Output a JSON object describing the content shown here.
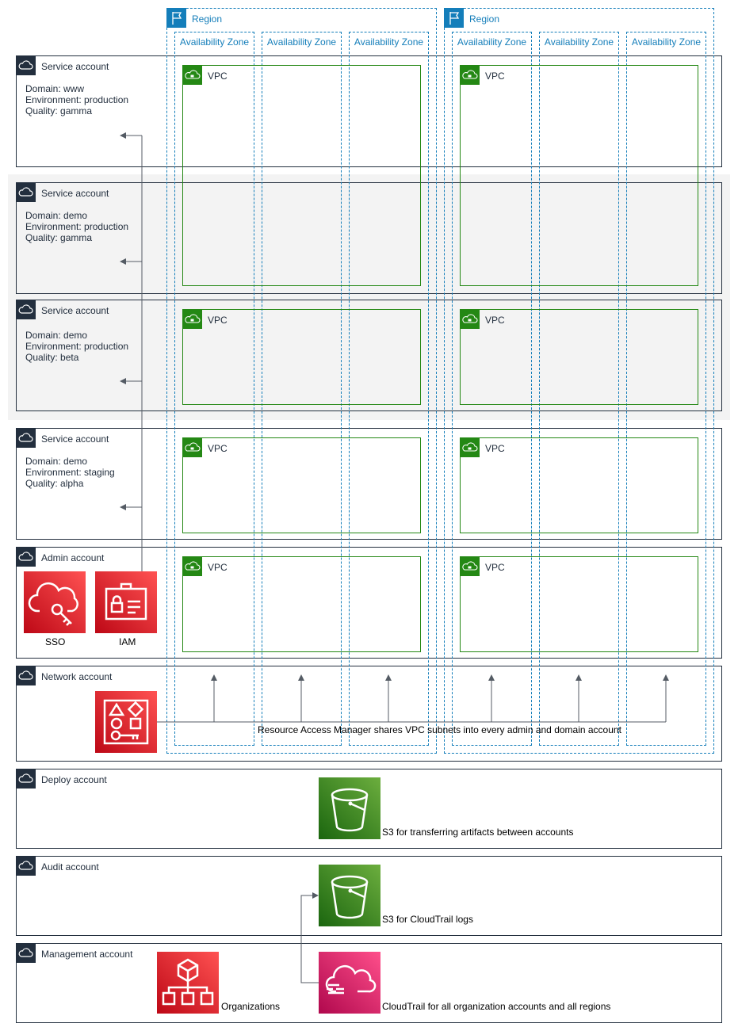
{
  "regions": [
    {
      "label": "Region",
      "azs": [
        "Availability Zone",
        "Availability Zone",
        "Availability Zone"
      ]
    },
    {
      "label": "Region",
      "azs": [
        "Availability Zone",
        "Availability Zone",
        "Availability Zone"
      ]
    }
  ],
  "accounts": {
    "svc1": {
      "label": "Service account",
      "domain": "Domain: www",
      "environment": "Environment: production",
      "quality": "Quality: gamma"
    },
    "svc2": {
      "label": "Service account",
      "domain": "Domain: demo",
      "environment": "Environment: production",
      "quality": "Quality: gamma"
    },
    "svc3": {
      "label": "Service account",
      "domain": "Domain: demo",
      "environment": "Environment: production",
      "quality": "Quality: beta"
    },
    "svc4": {
      "label": "Service account",
      "domain": "Domain: demo",
      "environment": "Environment: staging",
      "quality": "Quality: alpha"
    },
    "admin": {
      "label": "Admin account"
    },
    "network": {
      "label": "Network account"
    },
    "deploy": {
      "label": "Deploy account"
    },
    "audit": {
      "label": "Audit account"
    },
    "management": {
      "label": "Management account"
    }
  },
  "vpc_label": "VPC",
  "services": {
    "sso": "SSO",
    "iam": "IAM",
    "ram_note": "Resource Access Manager shares VPC subnets into every admin and domain account",
    "s3_deploy": "S3 for transferring artifacts between accounts",
    "s3_audit": "S3 for CloudTrail logs",
    "organizations": "Organizations",
    "cloudtrail": "CloudTrail for all organization accounts and all regions"
  },
  "colors": {
    "account": "#232f3e",
    "region": "#147eba",
    "vpc": "#248814",
    "security": "#dd344c",
    "storage": "#3f8624",
    "management": "#e7157b"
  }
}
